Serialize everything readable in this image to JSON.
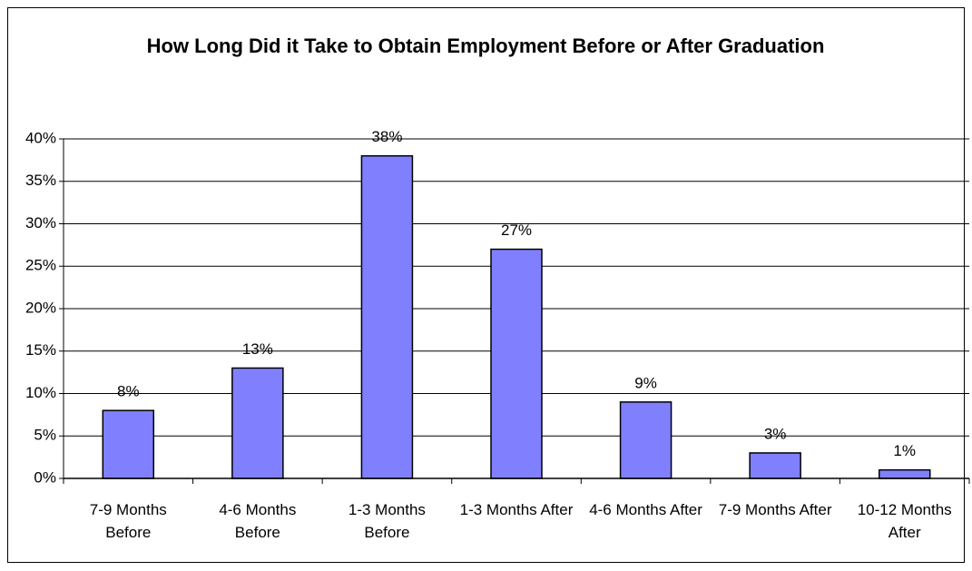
{
  "chart_data": {
    "type": "bar",
    "title": "How Long Did it Take to Obtain Employment Before or After Graduation",
    "categories": [
      "7-9 Months Before",
      "4-6 Months Before",
      "1-3 Months Before",
      "1-3 Months After",
      "4-6 Months After",
      "7-9 Months After",
      "10-12 Months After"
    ],
    "values": [
      8,
      13,
      38,
      27,
      9,
      3,
      1
    ],
    "value_labels": [
      "8%",
      "13%",
      "38%",
      "27%",
      "9%",
      "3%",
      "1%"
    ],
    "color": "#8080ff",
    "ylim": [
      0,
      40
    ],
    "yticks": [
      {
        "value": 0,
        "label": "0%"
      },
      {
        "value": 5,
        "label": "5%"
      },
      {
        "value": 10,
        "label": "10%"
      },
      {
        "value": 15,
        "label": "15%"
      },
      {
        "value": 20,
        "label": "20%"
      },
      {
        "value": 25,
        "label": "25%"
      },
      {
        "value": 30,
        "label": "30%"
      },
      {
        "value": 35,
        "label": "35%"
      },
      {
        "value": 40,
        "label": "40%"
      }
    ],
    "grid": true
  }
}
